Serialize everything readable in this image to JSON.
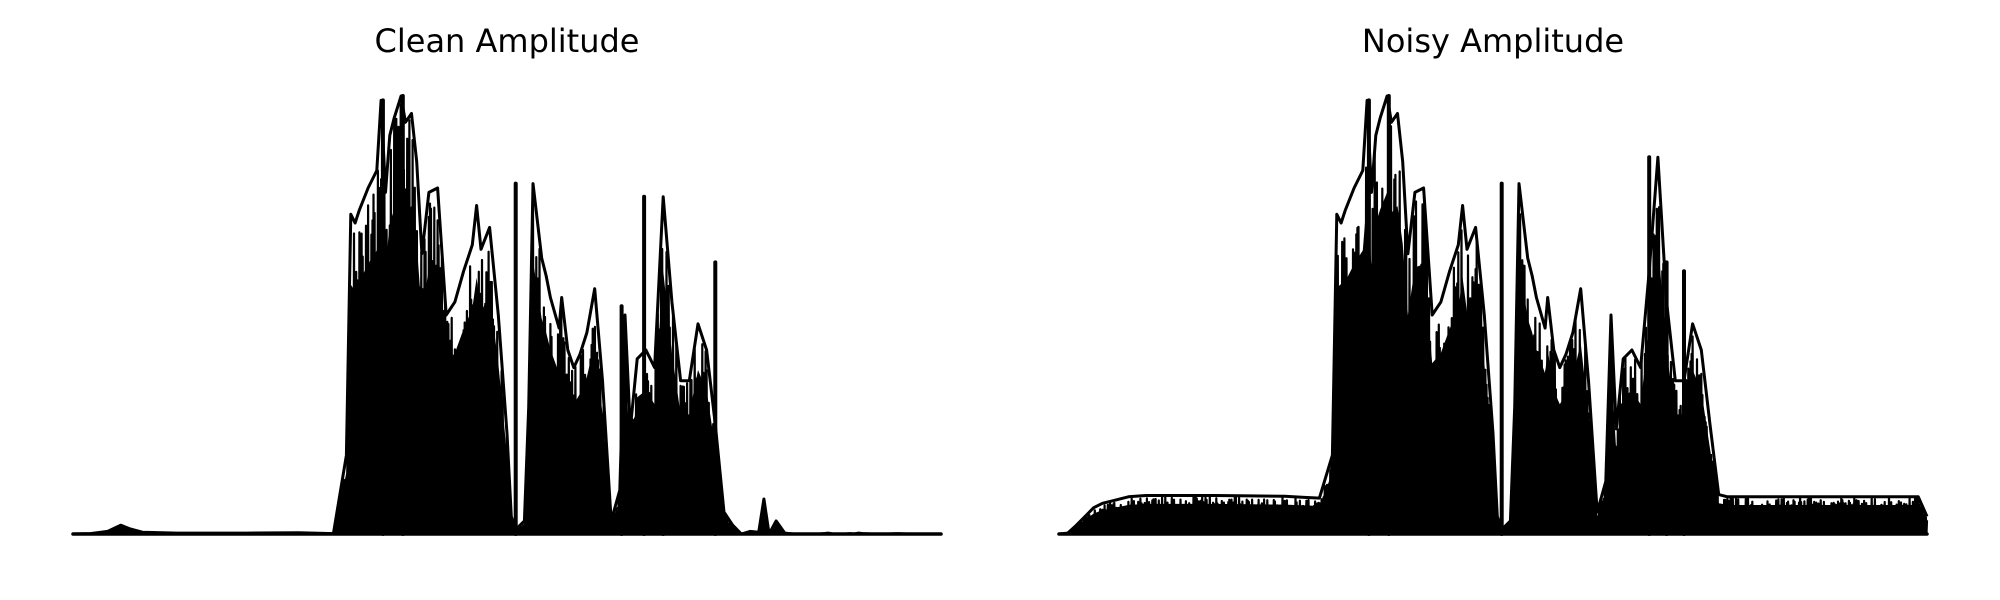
{
  "chart_data": [
    {
      "type": "line",
      "title": "Clean Amplitude",
      "axes_visible": false,
      "line_color": "#000000",
      "xlim": [
        0,
        100
      ],
      "ylim": [
        0,
        1
      ],
      "envelope": {
        "x": [
          0,
          2,
          4,
          5.5,
          6.5,
          8,
          12,
          20,
          26,
          30,
          31.5,
          32,
          32.5,
          33,
          34,
          35,
          35.5,
          36,
          36.5,
          37,
          37.8,
          38.3,
          39,
          39.6,
          40.2,
          41,
          42,
          43,
          44,
          45,
          46,
          46.5,
          47,
          48,
          49,
          50,
          50.5,
          51,
          52,
          52.5,
          53,
          54,
          54.5,
          55,
          56,
          56.3,
          57,
          57.7,
          58.4,
          59.2,
          60.1,
          61,
          62,
          63,
          63.6,
          64.2,
          65,
          66,
          67,
          68,
          69,
          70,
          71,
          72,
          73,
          74,
          75,
          76,
          77,
          78,
          79,
          79.6,
          80.2,
          81,
          82,
          83,
          84,
          85,
          86,
          86.5,
          87,
          87.5,
          88,
          89,
          89.5,
          90,
          90.5,
          91,
          92,
          93,
          94,
          95,
          96,
          97,
          98,
          99,
          100
        ],
        "y": [
          0,
          0.001,
          0.006,
          0.02,
          0.012,
          0.004,
          0.002,
          0.002,
          0.003,
          0.001,
          0.18,
          0.73,
          0.71,
          0.74,
          0.79,
          0.83,
          0.99,
          0.78,
          0.91,
          0.95,
          1.0,
          0.94,
          0.96,
          0.85,
          0.64,
          0.78,
          0.79,
          0.5,
          0.53,
          0.6,
          0.66,
          0.75,
          0.65,
          0.7,
          0.5,
          0.23,
          0.04,
          0.01,
          0.03,
          0.29,
          0.8,
          0.63,
          0.59,
          0.54,
          0.47,
          0.54,
          0.42,
          0.38,
          0.41,
          0.46,
          0.56,
          0.35,
          0.03,
          0.1,
          0.5,
          0.24,
          0.4,
          0.42,
          0.38,
          0.77,
          0.53,
          0.35,
          0.35,
          0.48,
          0.42,
          0.25,
          0.05,
          0.02,
          0.0,
          0.006,
          0.004,
          0.08,
          0.0,
          0.03,
          0.002,
          0.0,
          0.0,
          0.0,
          0.0,
          0.001,
          0.002,
          0.0,
          0.0,
          0.0,
          0.001,
          0.0,
          0.002,
          0.001,
          0.0,
          0.0,
          0.0,
          0.001,
          0.0,
          0.0,
          0.0,
          0.0,
          0.0
        ]
      },
      "spikes": [
        {
          "x": 35.7,
          "y": 0.99
        },
        {
          "x": 38.0,
          "y": 1.0
        },
        {
          "x": 51.0,
          "y": 0.8
        },
        {
          "x": 63.2,
          "y": 0.52
        },
        {
          "x": 65.8,
          "y": 0.77
        },
        {
          "x": 68.0,
          "y": 0.56
        },
        {
          "x": 74.0,
          "y": 0.62
        }
      ]
    },
    {
      "type": "line",
      "title": "Noisy Amplitude",
      "axes_visible": false,
      "line_color": "#000000",
      "xlim": [
        0,
        100
      ],
      "ylim": [
        0,
        1
      ],
      "envelope": {
        "x": [
          0,
          1,
          2,
          3,
          4,
          5,
          6,
          8,
          10,
          14,
          18,
          22,
          26,
          28,
          30,
          31.5,
          32,
          32.5,
          33,
          34,
          35,
          35.5,
          36,
          36.5,
          37,
          37.8,
          38.3,
          39,
          39.6,
          40.2,
          41,
          42,
          43,
          44,
          45,
          46,
          46.5,
          47,
          48,
          49,
          50,
          50.5,
          51,
          52,
          52.5,
          53,
          54,
          54.5,
          55,
          56,
          56.3,
          57,
          57.7,
          58.4,
          59.2,
          60.1,
          61,
          62,
          63,
          63.6,
          64.2,
          65,
          66,
          67,
          68,
          69,
          70,
          71,
          72,
          73,
          74,
          75,
          76,
          77,
          78,
          80,
          82,
          84,
          86,
          88,
          90,
          92,
          94,
          96,
          98,
          99,
          100
        ],
        "y": [
          0,
          0.002,
          0.02,
          0.04,
          0.06,
          0.07,
          0.075,
          0.085,
          0.088,
          0.088,
          0.088,
          0.087,
          0.086,
          0.084,
          0.082,
          0.18,
          0.73,
          0.71,
          0.74,
          0.79,
          0.83,
          0.99,
          0.78,
          0.91,
          0.95,
          1.0,
          0.94,
          0.96,
          0.85,
          0.64,
          0.78,
          0.79,
          0.5,
          0.53,
          0.6,
          0.66,
          0.75,
          0.65,
          0.7,
          0.5,
          0.23,
          0.04,
          0.01,
          0.03,
          0.29,
          0.8,
          0.63,
          0.59,
          0.54,
          0.47,
          0.54,
          0.42,
          0.38,
          0.41,
          0.46,
          0.56,
          0.35,
          0.05,
          0.12,
          0.5,
          0.24,
          0.4,
          0.42,
          0.38,
          0.6,
          0.86,
          0.53,
          0.35,
          0.35,
          0.48,
          0.42,
          0.25,
          0.09,
          0.085,
          0.085,
          0.085,
          0.085,
          0.085,
          0.085,
          0.085,
          0.085,
          0.085,
          0.085,
          0.085,
          0.085,
          0.085,
          0.04
        ]
      },
      "spikes": [
        {
          "x": 35.7,
          "y": 0.99
        },
        {
          "x": 38.0,
          "y": 1.0
        },
        {
          "x": 51.0,
          "y": 0.8
        },
        {
          "x": 68.0,
          "y": 0.86
        },
        {
          "x": 70.0,
          "y": 0.62
        },
        {
          "x": 72.0,
          "y": 0.6
        }
      ]
    }
  ]
}
